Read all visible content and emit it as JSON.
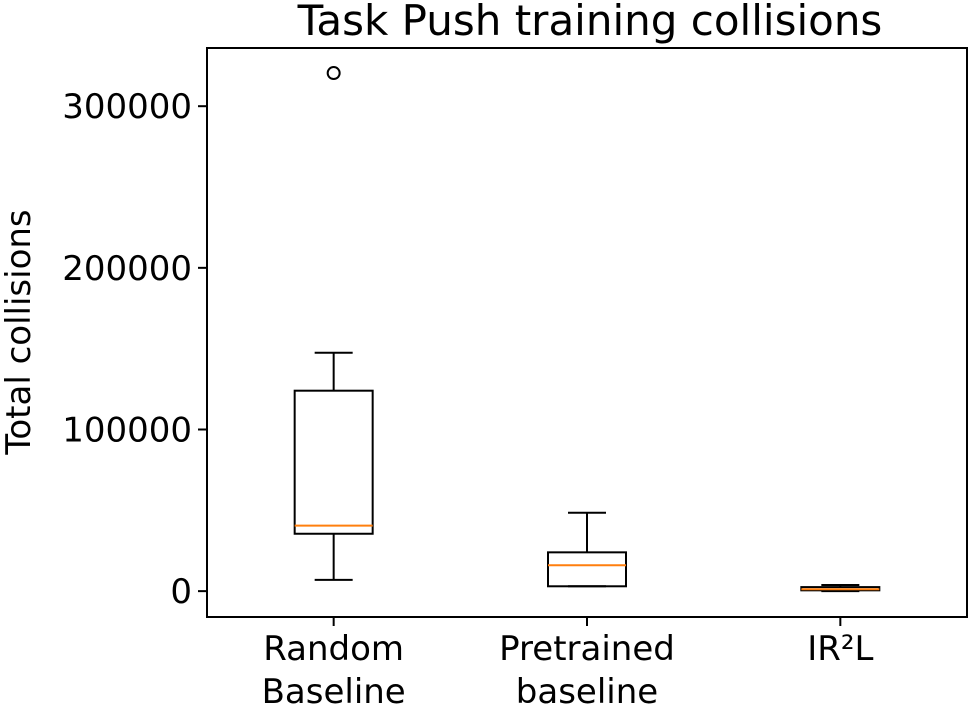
{
  "chart_data": {
    "type": "boxplot",
    "title": "Task Push training collisions",
    "xlabel": "",
    "ylabel": "Total collisions",
    "ylim": [
      -16000,
      336000
    ],
    "yticks": [
      0,
      100000,
      200000,
      300000
    ],
    "ytick_labels": [
      "0",
      "100000",
      "200000",
      "300000"
    ],
    "grid": false,
    "colors": {
      "box": "#000000",
      "median": "#ff7f0e"
    },
    "categories": [
      {
        "label_lines": [
          "Random",
          "Baseline"
        ],
        "whisker_low": 7000,
        "q1": 35500,
        "median": 40500,
        "q3": 124000,
        "whisker_high": 147500,
        "outliers": [
          320500
        ]
      },
      {
        "label_lines": [
          "Pretrained",
          "baseline"
        ],
        "whisker_low": 3000,
        "q1": 3000,
        "median": 16000,
        "q3": 24000,
        "whisker_high": 48500,
        "outliers": []
      },
      {
        "label_lines": [
          "IR²L"
        ],
        "whisker_low": 0,
        "q1": 500,
        "median": 1200,
        "q3": 2500,
        "whisker_high": 3800,
        "outliers": []
      }
    ]
  }
}
